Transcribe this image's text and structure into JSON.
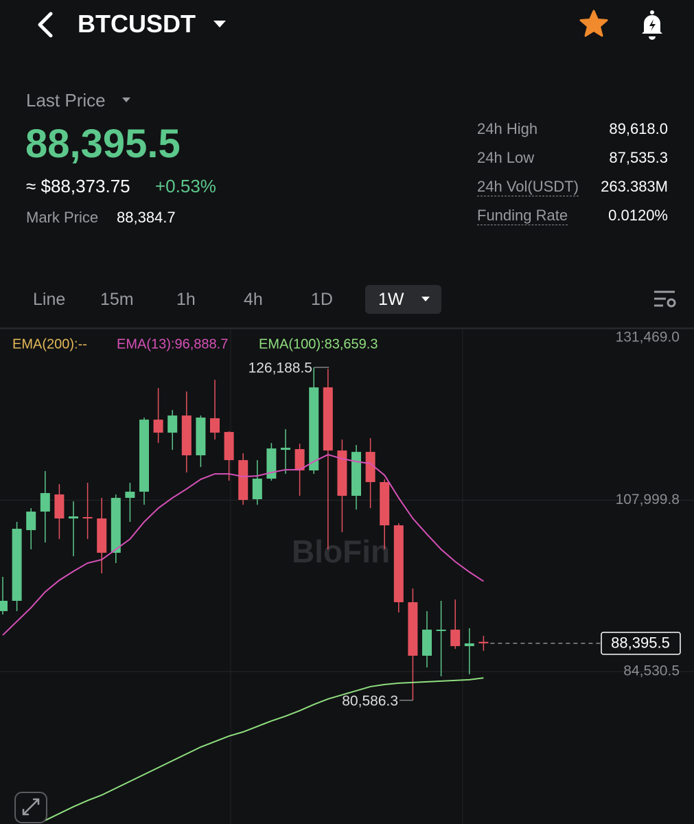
{
  "header": {
    "symbol": "BTCUSDT"
  },
  "price": {
    "label": "Last Price",
    "last": "88,395.5",
    "approx": "≈ $88,373.75",
    "change": "+0.53%",
    "mark_label": "Mark Price",
    "mark": "88,384.7"
  },
  "stats": [
    {
      "label": "24h High",
      "value": "89,618.0"
    },
    {
      "label": "24h Low",
      "value": "87,535.3"
    },
    {
      "label": "24h Vol(USDT)",
      "value": "263.383M"
    },
    {
      "label": "Funding Rate",
      "value": "0.0120%"
    }
  ],
  "tabs": [
    "Line",
    "15m",
    "1h",
    "4h",
    "1D",
    "1W"
  ],
  "watermark": "BloFin",
  "chart_data": {
    "type": "candlestick",
    "up_color": "#5cc88b",
    "down_color": "#e5525e",
    "ylim": [
      63650,
      131550
    ],
    "yticks": [
      {
        "value": 131469.0,
        "label": "131,469.0"
      },
      {
        "value": 107999.8,
        "label": "107,999.8"
      },
      {
        "value": 84530.5,
        "label": "84,530.5"
      }
    ],
    "grid": true,
    "candles": [
      {
        "open": 92806,
        "high": 97506,
        "low": 92336,
        "close": 94216
      },
      {
        "open": 94216,
        "high": 105026,
        "low": 92806,
        "close": 104086
      },
      {
        "open": 103898,
        "high": 106906,
        "low": 101266,
        "close": 106436
      },
      {
        "open": 106436,
        "high": 111982,
        "low": 102206,
        "close": 108974
      },
      {
        "open": 108786,
        "high": 110196,
        "low": 102676,
        "close": 105496
      },
      {
        "open": 105496,
        "high": 107846,
        "low": 100326,
        "close": 105778
      },
      {
        "open": 105684,
        "high": 110384,
        "low": 102676,
        "close": 105496
      },
      {
        "open": 105496,
        "high": 108316,
        "low": 97976,
        "close": 100796
      },
      {
        "open": 100796,
        "high": 108786,
        "low": 99386,
        "close": 108316
      },
      {
        "open": 108316,
        "high": 110384,
        "low": 105026,
        "close": 109162
      },
      {
        "open": 109162,
        "high": 119314,
        "low": 107376,
        "close": 119032
      },
      {
        "open": 119032,
        "high": 123356,
        "low": 115836,
        "close": 117246
      },
      {
        "open": 117246,
        "high": 120348,
        "low": 114896,
        "close": 119596
      },
      {
        "open": 119596,
        "high": 122886,
        "low": 111794,
        "close": 114144
      },
      {
        "open": 114144,
        "high": 119596,
        "low": 112546,
        "close": 119314
      },
      {
        "open": 119220,
        "high": 124484,
        "low": 116306,
        "close": 117246
      },
      {
        "open": 117340,
        "high": 117434,
        "low": 110666,
        "close": 113486
      },
      {
        "open": 113486,
        "high": 114426,
        "low": 107376,
        "close": 108034
      },
      {
        "open": 108128,
        "high": 113486,
        "low": 107376,
        "close": 110948
      },
      {
        "open": 110948,
        "high": 115836,
        "low": 110666,
        "close": 115084
      },
      {
        "open": 114896,
        "high": 117716,
        "low": 111606,
        "close": 115178
      },
      {
        "open": 114990,
        "high": 115742,
        "low": 108598,
        "close": 112076
      },
      {
        "open": 112076,
        "high": 126188.5,
        "low": 111606,
        "close": 123450
      },
      {
        "open": 123450,
        "high": 125988,
        "low": 101266,
        "close": 114802
      },
      {
        "open": 114802,
        "high": 116306,
        "low": 103616,
        "close": 108598
      },
      {
        "open": 108598,
        "high": 115554,
        "low": 106718,
        "close": 114614
      },
      {
        "open": 114614,
        "high": 116494,
        "low": 106906,
        "close": 110478
      },
      {
        "open": 110478,
        "high": 110854,
        "low": 101266,
        "close": 104556
      },
      {
        "open": 104556,
        "high": 104838,
        "low": 92618,
        "close": 94028
      },
      {
        "open": 94028,
        "high": 95908,
        "low": 80586.3,
        "close": 86696
      },
      {
        "open": 86696,
        "high": 92806,
        "low": 85098,
        "close": 90268
      },
      {
        "open": 90080,
        "high": 94216,
        "low": 83876,
        "close": 90268
      },
      {
        "open": 90268,
        "high": 94404,
        "low": 87636,
        "close": 88012
      },
      {
        "open": 88012,
        "high": 90456,
        "low": 84158,
        "close": 88388
      },
      {
        "open": 88600,
        "high": 89422,
        "low": 87354,
        "close": 88395.5
      }
    ],
    "series": [
      {
        "label": "EMA(200):--",
        "color": "#e3b95a"
      },
      {
        "label": "EMA(13):96,888.7",
        "color": "#d651b8",
        "values": [
          89516,
          91396,
          93276,
          95438,
          97036,
          98258,
          99386,
          99856,
          101266,
          102676,
          105026,
          106906,
          108316,
          109538,
          110854,
          111606,
          111606,
          111230,
          111324,
          111794,
          112170,
          112170,
          113298,
          114238,
          113674,
          113298,
          113016,
          111418,
          108316,
          105496,
          103334,
          101266,
          99574,
          98164,
          96888.7
        ]
      },
      {
        "label": "EMA(100):83,659.3",
        "color": "#8fdf7f",
        "values": [
          null,
          null,
          null,
          64136,
          65076,
          66016,
          66862,
          67614,
          68554,
          69494,
          70434,
          71374,
          72314,
          73254,
          74194,
          74946,
          75698,
          76262,
          77014,
          77766,
          78424,
          79176,
          80022,
          80774,
          81338,
          81902,
          82466,
          82748,
          82936,
          83030,
          83124,
          83218,
          83312,
          83406,
          83659.3
        ]
      }
    ],
    "high_label": {
      "value": 126188.5,
      "label": "126,188.5"
    },
    "low_label": {
      "value": 80586.3,
      "label": "80,586.3"
    },
    "last_price": {
      "value": 88395.5,
      "label": "88,395.5"
    }
  }
}
